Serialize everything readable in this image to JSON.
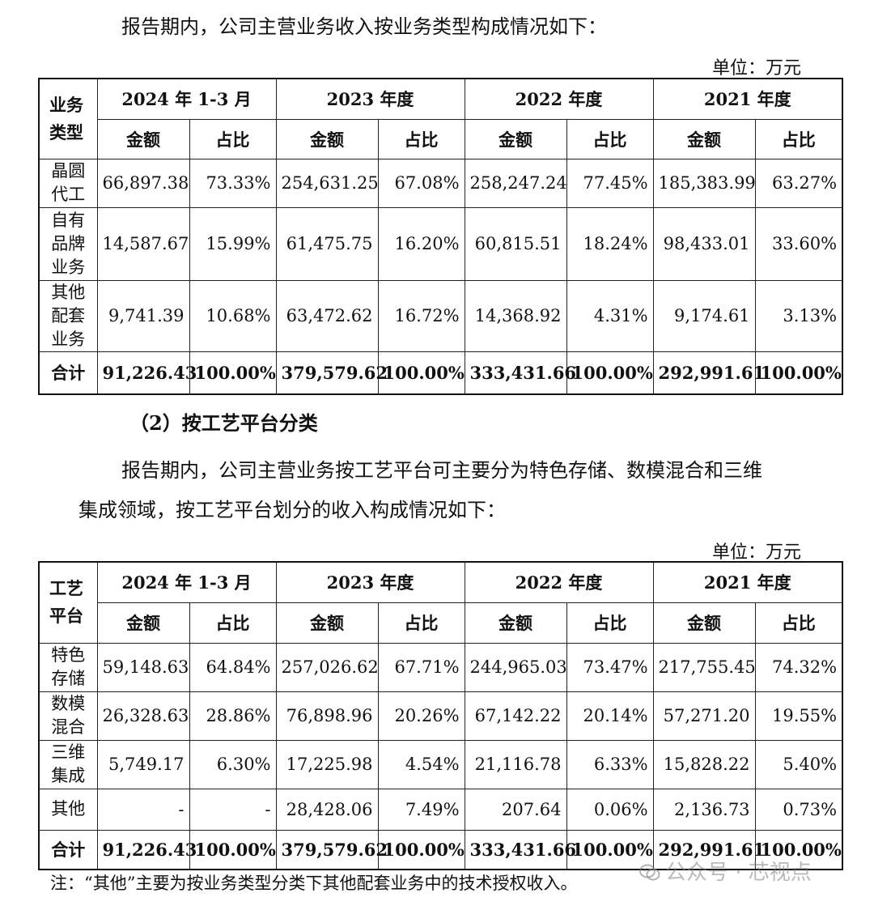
{
  "intro1": "报告期内，公司主营业务收入按业务类型构成情况如下：",
  "unit_label": "单位：万元",
  "table1": {
    "corner": "业务类型",
    "periods": [
      "2024 年 1-3 月",
      "2023 年度",
      "2022 年度",
      "2021 年度"
    ],
    "sub_headers": [
      "金额",
      "占比",
      "金额",
      "占比",
      "金额",
      "占比",
      "金额",
      "占比"
    ],
    "rows": [
      {
        "label": "晶圆代工",
        "cells": [
          "66,897.38",
          "73.33%",
          "254,631.25",
          "67.08%",
          "258,247.24",
          "77.45%",
          "185,383.99",
          "63.27%"
        ]
      },
      {
        "label": "自有品牌业务",
        "cells": [
          "14,587.67",
          "15.99%",
          "61,475.75",
          "16.20%",
          "60,815.51",
          "18.24%",
          "98,433.01",
          "33.60%"
        ]
      },
      {
        "label": "其他配套业务",
        "cells": [
          "9,741.39",
          "10.68%",
          "63,472.62",
          "16.72%",
          "14,368.92",
          "4.31%",
          "9,174.61",
          "3.13%"
        ]
      }
    ],
    "total": {
      "label": "合计",
      "cells": [
        "91,226.43",
        "100.00%",
        "379,579.62",
        "100.00%",
        "333,431.66",
        "100.00%",
        "292,991.61",
        "100.00%"
      ]
    }
  },
  "section2_title": "（2）按工艺平台分类",
  "intro2_line1": "报告期内，公司主营业务按工艺平台可主要分为特色存储、数模混合和三维",
  "intro2_line2": "集成领域，按工艺平台划分的收入构成情况如下：",
  "table2": {
    "corner": "工艺平台",
    "periods": [
      "2024 年 1-3 月",
      "2023 年度",
      "2022 年度",
      "2021 年度"
    ],
    "sub_headers": [
      "金额",
      "占比",
      "金额",
      "占比",
      "金额",
      "占比",
      "金额",
      "占比"
    ],
    "rows": [
      {
        "label": "特色存储",
        "cells": [
          "59,148.63",
          "64.84%",
          "257,026.62",
          "67.71%",
          "244,965.03",
          "73.47%",
          "217,755.45",
          "74.32%"
        ]
      },
      {
        "label": "数模混合",
        "cells": [
          "26,328.63",
          "28.86%",
          "76,898.96",
          "20.26%",
          "67,142.22",
          "20.14%",
          "57,271.20",
          "19.55%"
        ]
      },
      {
        "label": "三维集成",
        "cells": [
          "5,749.17",
          "6.30%",
          "17,225.98",
          "4.54%",
          "21,116.78",
          "6.33%",
          "15,828.22",
          "5.40%"
        ]
      },
      {
        "label": "其他",
        "cells": [
          "-",
          "-",
          "28,428.06",
          "7.49%",
          "207.64",
          "0.06%",
          "2,136.73",
          "0.73%"
        ]
      }
    ],
    "total": {
      "label": "合计",
      "cells": [
        "91,226.43",
        "100.00%",
        "379,579.62",
        "100.00%",
        "333,431.66",
        "100.00%",
        "292,991.61",
        "100.00%"
      ]
    }
  },
  "note": "注：“其他”主要为按业务类型分类下其他配套业务中的技术授权收入。",
  "watermark": {
    "text": "公众号 · 芯视点",
    "icon": "wechat-icon"
  }
}
